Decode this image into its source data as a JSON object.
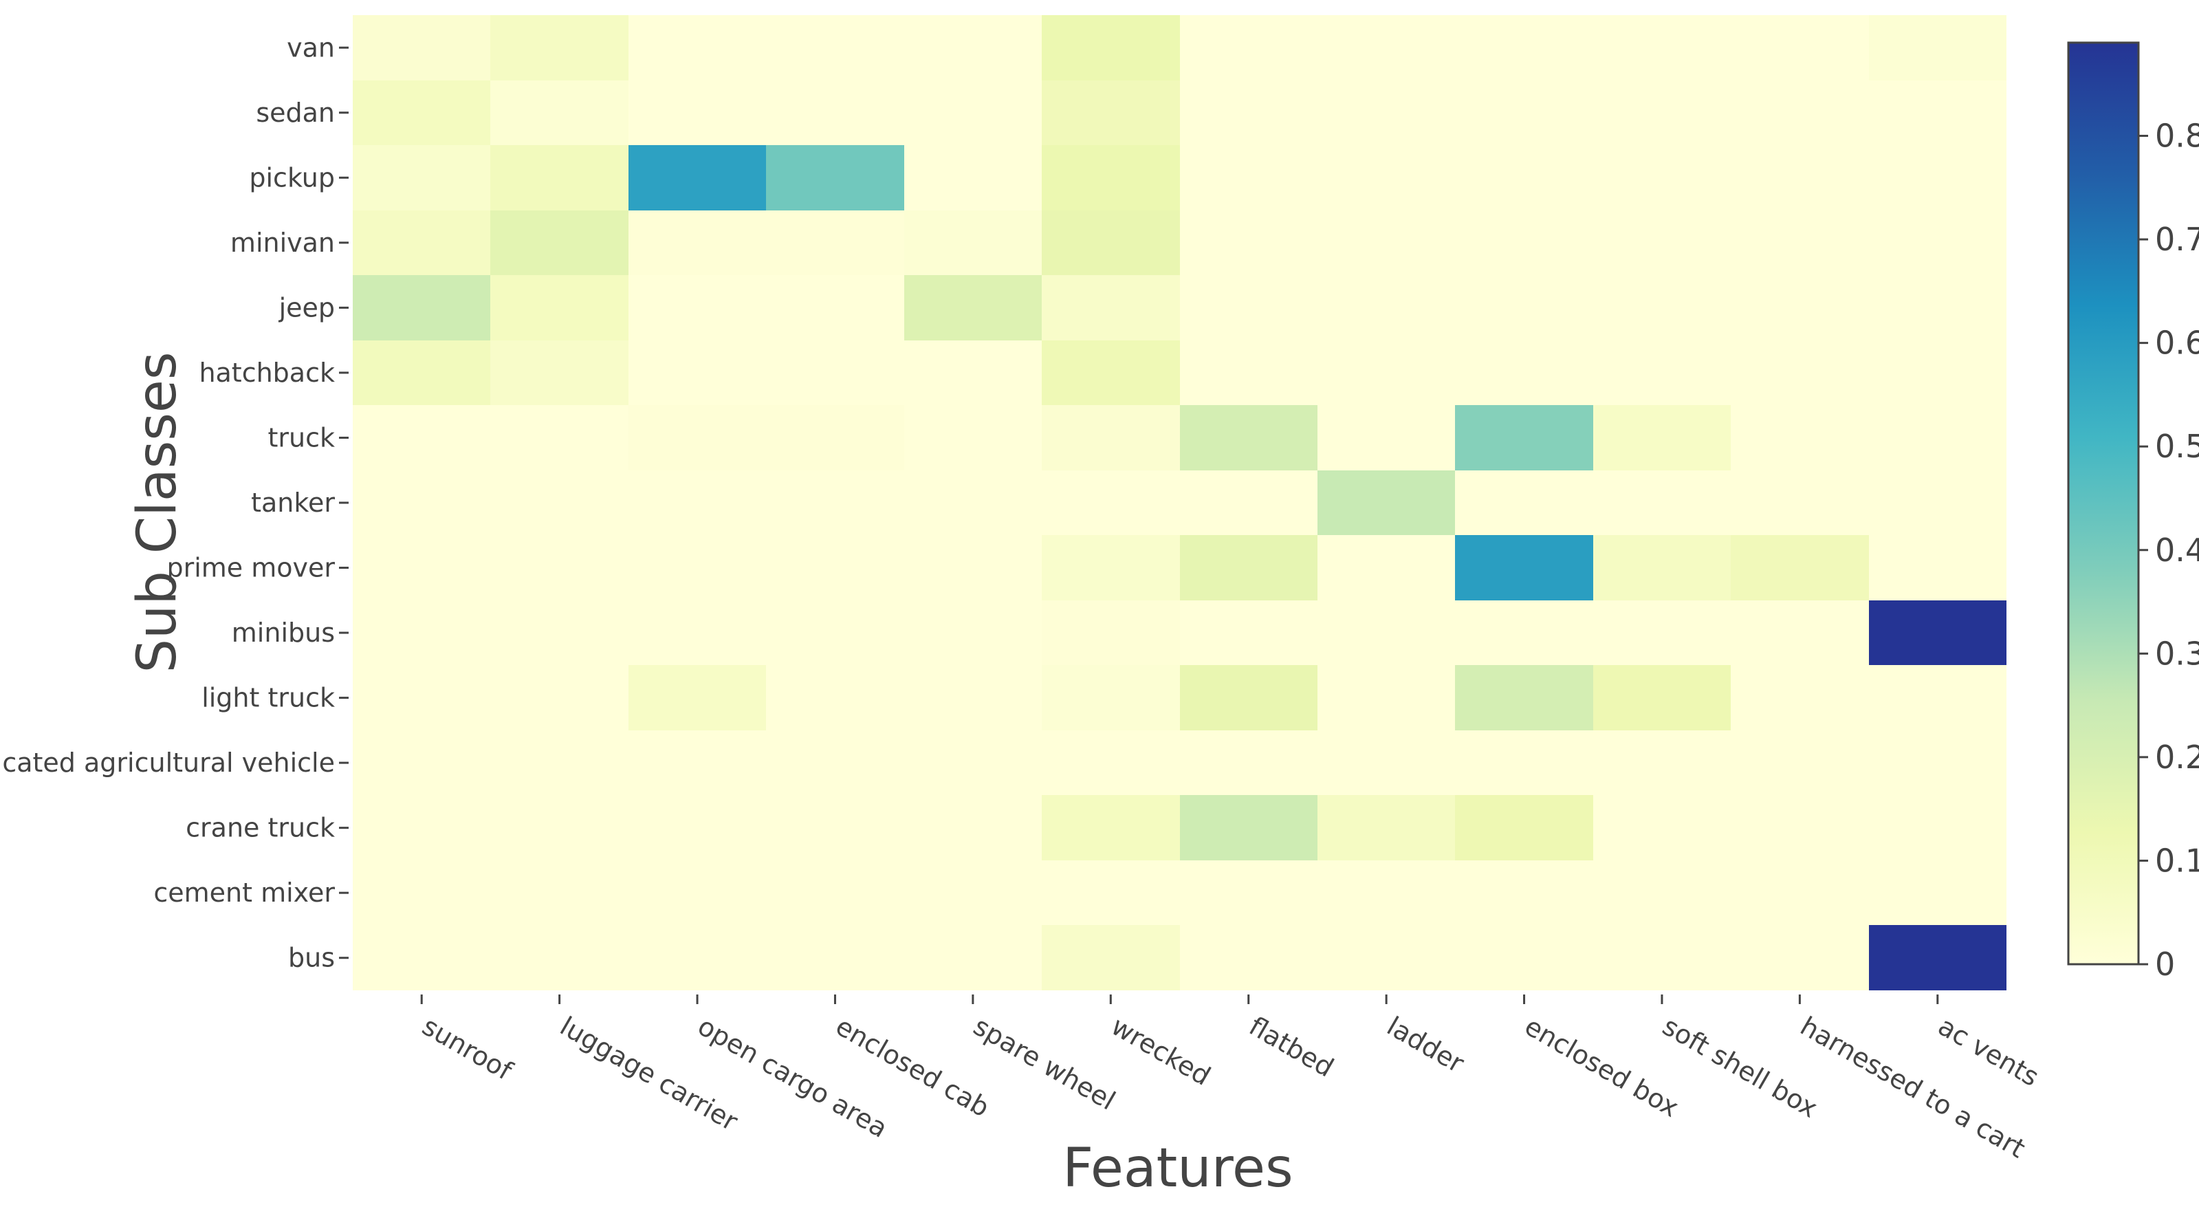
{
  "chart_data": {
    "type": "heatmap",
    "xlabel": "Features",
    "ylabel": "Sub Classes",
    "x_categories": [
      "sunroof",
      "luggage carrier",
      "open cargo area",
      "enclosed cab",
      "spare wheel",
      "wrecked",
      "flatbed",
      "ladder",
      "enclosed box",
      "soft shell box",
      "harnessed to a cart",
      "ac vents"
    ],
    "y_categories": [
      "van",
      "sedan",
      "pickup",
      "minivan",
      "jeep",
      "hatchback",
      "truck",
      "tanker",
      "prime mover",
      "minibus",
      "light truck",
      "dedicated agricultural vehicle",
      "crane truck",
      "cement mixer",
      "bus"
    ],
    "z": [
      [
        0.03,
        0.07,
        0.0,
        0.0,
        0.0,
        0.13,
        0.0,
        0.0,
        0.0,
        0.0,
        0.0,
        0.02
      ],
      [
        0.08,
        0.02,
        0.0,
        0.0,
        0.0,
        0.1,
        0.0,
        0.0,
        0.0,
        0.0,
        0.0,
        0.0
      ],
      [
        0.04,
        0.09,
        0.58,
        0.41,
        0.0,
        0.13,
        0.0,
        0.0,
        0.0,
        0.0,
        0.0,
        0.0
      ],
      [
        0.07,
        0.16,
        0.01,
        0.01,
        0.02,
        0.14,
        0.0,
        0.0,
        0.0,
        0.0,
        0.0,
        0.0
      ],
      [
        0.23,
        0.08,
        0.0,
        0.0,
        0.18,
        0.05,
        0.0,
        0.0,
        0.0,
        0.0,
        0.0,
        0.0
      ],
      [
        0.09,
        0.05,
        0.0,
        0.0,
        0.0,
        0.11,
        0.0,
        0.0,
        0.0,
        0.0,
        0.0,
        0.0
      ],
      [
        0.0,
        0.0,
        0.01,
        0.01,
        0.0,
        0.03,
        0.21,
        0.0,
        0.37,
        0.06,
        0.0,
        0.0
      ],
      [
        0.0,
        0.0,
        0.0,
        0.0,
        0.0,
        0.0,
        0.0,
        0.25,
        0.0,
        0.0,
        0.0,
        0.0
      ],
      [
        0.0,
        0.0,
        0.0,
        0.0,
        0.0,
        0.04,
        0.15,
        0.0,
        0.59,
        0.07,
        0.1,
        0.0
      ],
      [
        0.0,
        0.0,
        0.0,
        0.0,
        0.0,
        0.01,
        0.0,
        0.0,
        0.0,
        0.0,
        0.0,
        0.89
      ],
      [
        0.0,
        0.0,
        0.06,
        0.0,
        0.0,
        0.02,
        0.14,
        0.0,
        0.21,
        0.12,
        0.0,
        0.0
      ],
      [
        0.0,
        0.0,
        0.0,
        0.0,
        0.0,
        0.0,
        0.0,
        0.0,
        0.0,
        0.0,
        0.0,
        0.0
      ],
      [
        0.0,
        0.0,
        0.0,
        0.0,
        0.0,
        0.08,
        0.23,
        0.07,
        0.12,
        0.0,
        0.0,
        0.0
      ],
      [
        0.0,
        0.0,
        0.0,
        0.0,
        0.0,
        0.0,
        0.0,
        0.0,
        0.0,
        0.0,
        0.0,
        0.0
      ],
      [
        0.0,
        0.0,
        0.0,
        0.0,
        0.0,
        0.05,
        0.0,
        0.0,
        0.0,
        0.0,
        0.0,
        0.89
      ]
    ],
    "colorscale": "YlGnBu",
    "zrange": [
      0,
      0.89
    ],
    "colorbar_ticks": [
      "0",
      "0.1",
      "0.2",
      "0.3",
      "0.4",
      "0.5",
      "0.6",
      "0.7",
      "0.8"
    ],
    "colorbar_tick_values": [
      0,
      0.1,
      0.2,
      0.3,
      0.4,
      0.5,
      0.6,
      0.7,
      0.8
    ],
    "colorscale_stops": [
      "#ffffd9",
      "#edf8b1",
      "#c7e9b4",
      "#7fcdbb",
      "#41b6c4",
      "#1d91c0",
      "#225ea8",
      "#253494"
    ],
    "grid": false,
    "legend": "colorbar-right"
  }
}
